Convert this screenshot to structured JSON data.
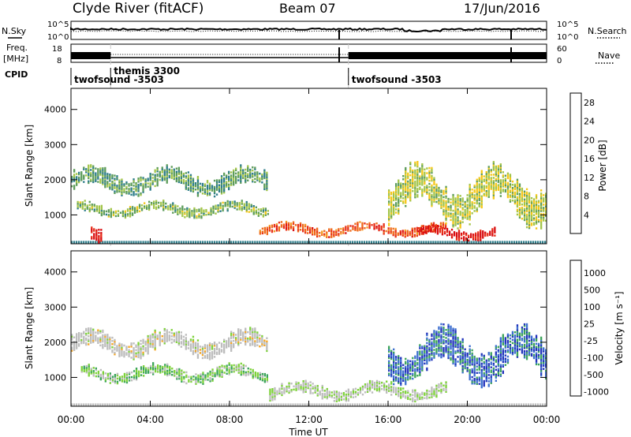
{
  "header": {
    "station": "Clyde River (fitACF)",
    "beam": "Beam 07",
    "date": "17/Jun/2016"
  },
  "top_panels": {
    "nsky_label": "N.Sky",
    "nsearch_label": "N.Search",
    "freq_label_line1": "Freq.",
    "freq_label_line2": "[MHz]",
    "nave_label": "Nave",
    "cpid_label": "CPID",
    "nsky_ticks": [
      "10^5",
      "10^0"
    ],
    "nsearch_ticks": [
      "10^5",
      "10^0"
    ],
    "freq_ticks": [
      "18",
      "8"
    ],
    "nave_ticks": [
      "60",
      "0"
    ],
    "cpid_segments": [
      {
        "label": "twofsound -3503",
        "start_hour": 0.0
      },
      {
        "label": "themis 3300",
        "start_hour": 2.0
      },
      {
        "label": "twofsound -3503",
        "start_hour": 14.0
      }
    ],
    "mode_change_hours": [
      2.0,
      14.0
    ]
  },
  "axes": {
    "ylabel": "Slant Range [km]",
    "yticks": [
      "1000",
      "2000",
      "3000",
      "4000"
    ],
    "xlabel": "Time UT",
    "xticks": [
      "00:00",
      "04:00",
      "08:00",
      "12:00",
      "16:00",
      "20:00",
      "00:00"
    ]
  },
  "power_colorbar": {
    "label": "Power [dB]",
    "ticks": [
      "4",
      "8",
      "12",
      "16",
      "20",
      "24",
      "28"
    ],
    "colors": [
      "#1f2bd9",
      "#2a55c0",
      "#2e7d8a",
      "#5d9c5a",
      "#a3c54a",
      "#f5c71a",
      "#f59a23",
      "#ef6a1b",
      "#e8311a",
      "#d90f12"
    ]
  },
  "velocity_colorbar": {
    "label": "Velocity [m s⁻¹]",
    "ticks": [
      "1000",
      "500",
      "100",
      "25",
      "-25",
      "-100",
      "-500",
      "-1000"
    ],
    "colors": [
      "#2233bb",
      "#3d6fcf",
      "#3ba45a",
      "#7ed23a",
      "#bdbdbd",
      "#bdbdbd",
      "#f5a623",
      "#ef7d1a",
      "#e84a12",
      "#dd1111"
    ]
  },
  "chart_data": {
    "type": "heatmap",
    "title": "Clyde River (fitACF)  Beam 07  17/Jun/2016",
    "xlabel": "Time UT",
    "ylabel": "Slant Range [km]",
    "xlim_hours": [
      0,
      24
    ],
    "ylim_km": [
      180,
      4600
    ],
    "panels": [
      {
        "name": "Power [dB]",
        "clim": [
          0,
          30
        ],
        "regions": [
          {
            "t": [
              0.0,
              10.0
            ],
            "r": [
              1500,
              2400
            ],
            "value": 10
          },
          {
            "t": [
              0.3,
              10.0
            ],
            "r": [
              900,
              1400
            ],
            "value": 12
          },
          {
            "t": [
              1.0,
              1.6
            ],
            "r": [
              200,
              900
            ],
            "value": 28
          },
          {
            "t": [
              9.5,
              19.0
            ],
            "r": [
              350,
              800
            ],
            "value": 24
          },
          {
            "t": [
              17.5,
              21.5
            ],
            "r": [
              250,
              700
            ],
            "value": 28
          },
          {
            "t": [
              16.0,
              24.0
            ],
            "r": [
              600,
              2500
            ],
            "value": 14
          }
        ]
      },
      {
        "name": "Velocity [m s-1]",
        "clim": [
          -1000,
          1000
        ],
        "regions": [
          {
            "t": [
              0.0,
              10.0
            ],
            "r": [
              1500,
              2400
            ],
            "value": 0
          },
          {
            "t": [
              0.5,
              10.0
            ],
            "r": [
              800,
              1400
            ],
            "value": -300
          },
          {
            "t": [
              10.0,
              19.0
            ],
            "r": [
              300,
              900
            ],
            "value": -150
          },
          {
            "t": [
              16.0,
              24.0
            ],
            "r": [
              700,
              2500
            ],
            "value": -700
          }
        ]
      }
    ]
  }
}
